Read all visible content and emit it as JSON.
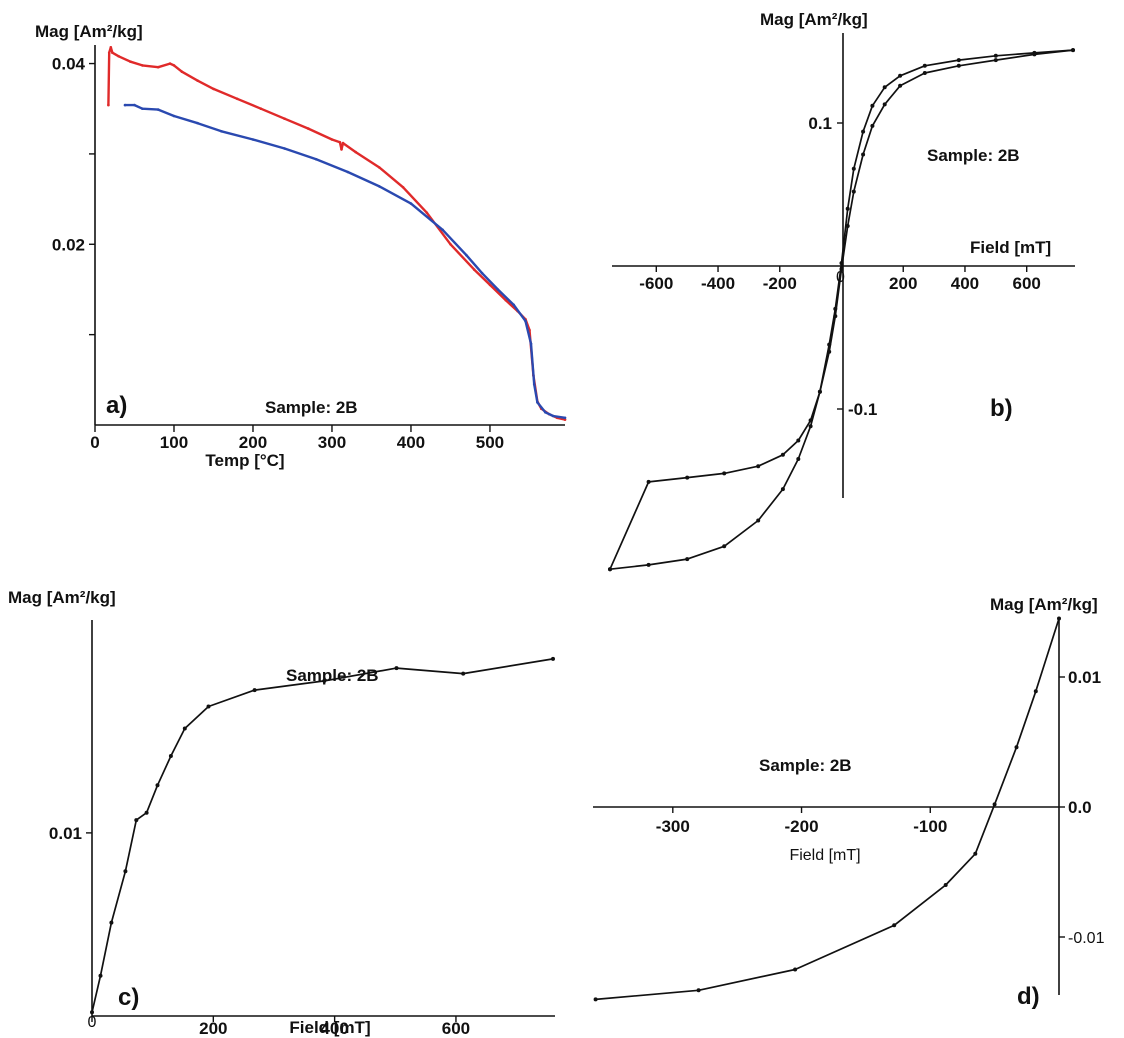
{
  "colors": {
    "axis": "#111111",
    "heating": "#e02a2a",
    "cooling": "#2a49b0",
    "black": "#111111"
  },
  "chart_data": [
    {
      "panel": "a)",
      "type": "line",
      "sample": "Sample: 2B",
      "xlabel": "Temp [°C]",
      "ylabel": "Mag [Am²/kg]",
      "xlim": [
        0,
        595
      ],
      "ylim": [
        0.0,
        0.0415
      ],
      "xticks": [
        0,
        100,
        200,
        300,
        400,
        500
      ],
      "yticks": [
        {
          "value": 0.04,
          "label": "0.04"
        },
        {
          "value": 0.03,
          "label": ""
        },
        {
          "value": 0.02,
          "label": "0.02"
        },
        {
          "value": 0.01,
          "label": ""
        }
      ],
      "series": [
        {
          "color": "#e02a2a",
          "x": [
            17,
            18,
            20,
            22,
            30,
            45,
            60,
            80,
            95,
            100,
            110,
            130,
            150,
            180,
            210,
            240,
            270,
            300,
            310,
            312,
            314,
            330,
            360,
            390,
            420,
            450,
            480,
            500,
            520,
            535,
            545,
            550,
            555,
            560,
            565,
            575,
            585,
            595
          ],
          "y": [
            0.0354,
            0.0412,
            0.0418,
            0.0412,
            0.0408,
            0.0402,
            0.0398,
            0.0396,
            0.04,
            0.0398,
            0.0391,
            0.0381,
            0.0372,
            0.0361,
            0.035,
            0.0339,
            0.0328,
            0.0316,
            0.0313,
            0.0305,
            0.0312,
            0.0302,
            0.0285,
            0.0263,
            0.0235,
            0.02,
            0.0172,
            0.0155,
            0.0138,
            0.0126,
            0.0117,
            0.0105,
            0.0055,
            0.0026,
            0.0018,
            0.0012,
            0.0008,
            0.0006
          ]
        },
        {
          "color": "#2a49b0",
          "x": [
            38,
            50,
            60,
            80,
            100,
            130,
            160,
            200,
            240,
            280,
            320,
            360,
            400,
            440,
            470,
            490,
            510,
            530,
            545,
            552,
            556,
            560,
            570,
            580,
            595
          ],
          "y": [
            0.0354,
            0.0354,
            0.035,
            0.0349,
            0.0342,
            0.0334,
            0.0325,
            0.0316,
            0.0306,
            0.0294,
            0.028,
            0.0264,
            0.0245,
            0.0216,
            0.0188,
            0.0168,
            0.015,
            0.0133,
            0.0115,
            0.009,
            0.0045,
            0.0025,
            0.0014,
            0.001,
            0.0008
          ]
        }
      ]
    },
    {
      "panel": "b)",
      "type": "line",
      "sample": "Sample: 2B",
      "xlabel": "Field [mT]",
      "ylabel": "Mag [Am²/kg]",
      "xlim": [
        -750,
        750
      ],
      "ylim": [
        -0.212,
        0.151
      ],
      "xticks": [
        {
          "value": -600,
          "label": "-600"
        },
        {
          "value": -400,
          "label": "-400"
        },
        {
          "value": -200,
          "label": "-200"
        },
        {
          "value": 0,
          "label": "0"
        },
        {
          "value": 200,
          "label": "200"
        },
        {
          "value": 400,
          "label": "400"
        },
        {
          "value": 600,
          "label": "600"
        }
      ],
      "yticks": [
        {
          "value": 0.1,
          "label": "0.1"
        },
        {
          "value": -0.1,
          "label": "-0.1"
        }
      ],
      "series": [
        {
          "color": "#111111",
          "x": [
            -750,
            -625,
            -500,
            -380,
            -270,
            -190,
            -140,
            -100,
            -70,
            -40,
            -20,
            0,
            20,
            40,
            70,
            100,
            140,
            190,
            270,
            380,
            500,
            625,
            750
          ],
          "y": [
            -0.212,
            -0.209,
            -0.205,
            -0.196,
            -0.178,
            -0.156,
            -0.135,
            -0.112,
            -0.088,
            -0.055,
            -0.03,
            0.002,
            0.04,
            0.068,
            0.094,
            0.112,
            0.125,
            0.133,
            0.14,
            0.144,
            0.147,
            0.149,
            0.151
          ]
        },
        {
          "color": "#111111",
          "x": [
            750,
            625,
            500,
            380,
            270,
            190,
            140,
            100,
            70,
            40,
            20,
            0,
            -20,
            -40,
            -70,
            -100,
            -140,
            -190,
            -270,
            -380,
            -500,
            -625,
            -750
          ],
          "y": [
            0.151,
            0.148,
            0.144,
            0.14,
            0.135,
            0.126,
            0.113,
            0.098,
            0.078,
            0.052,
            0.028,
            -0.002,
            -0.035,
            -0.06,
            -0.088,
            -0.108,
            -0.122,
            -0.132,
            -0.14,
            -0.145,
            -0.148,
            -0.151,
            -0.212
          ]
        }
      ]
    },
    {
      "panel": "c)",
      "type": "line",
      "sample": "Sample: 2B",
      "xlabel": "Field [mT]",
      "ylabel": "Mag [Am²/kg]",
      "xlim": [
        0,
        760
      ],
      "ylim": [
        0.0,
        0.0225
      ],
      "xticks": [
        {
          "value": 0,
          "label": "0"
        },
        {
          "value": 200,
          "label": "200"
        },
        {
          "value": 400,
          "label": "400"
        },
        {
          "value": 600,
          "label": "600"
        }
      ],
      "yticks": [
        {
          "value": 0.01,
          "label": "0.01"
        }
      ],
      "series": [
        {
          "color": "#111111",
          "x": [
            0,
            14,
            32,
            55,
            73,
            90,
            108,
            130,
            153,
            192,
            268,
            383,
            502,
            612,
            760
          ],
          "y": [
            0.0002,
            0.0022,
            0.0051,
            0.0079,
            0.0107,
            0.0111,
            0.0126,
            0.0142,
            0.0157,
            0.0169,
            0.0178,
            0.0183,
            0.019,
            0.0187,
            0.0195
          ]
        }
      ]
    },
    {
      "panel": "d)",
      "type": "line",
      "sample": "Sample: 2B",
      "xlabel": "Field [mT]",
      "ylabel": "Mag [Am²/kg]",
      "xlim": [
        -362,
        0
      ],
      "ylim": [
        -0.0155,
        0.0145
      ],
      "xticks": [
        {
          "value": -300,
          "label": "-300"
        },
        {
          "value": -200,
          "label": "-200"
        },
        {
          "value": -100,
          "label": "-100"
        }
      ],
      "yticks": [
        {
          "value": 0.01,
          "label": "0.01"
        },
        {
          "value": 0.0,
          "label": "0.0"
        },
        {
          "value": -0.01,
          "label": "-0.01"
        }
      ],
      "series": [
        {
          "color": "#111111",
          "x": [
            -360,
            -280,
            -205,
            -128,
            -88,
            -65,
            -50,
            -33,
            -18,
            0
          ],
          "y": [
            -0.0148,
            -0.0141,
            -0.0125,
            -0.0091,
            -0.006,
            -0.0036,
            0.0002,
            0.0046,
            0.0089,
            0.0145
          ]
        }
      ]
    }
  ]
}
